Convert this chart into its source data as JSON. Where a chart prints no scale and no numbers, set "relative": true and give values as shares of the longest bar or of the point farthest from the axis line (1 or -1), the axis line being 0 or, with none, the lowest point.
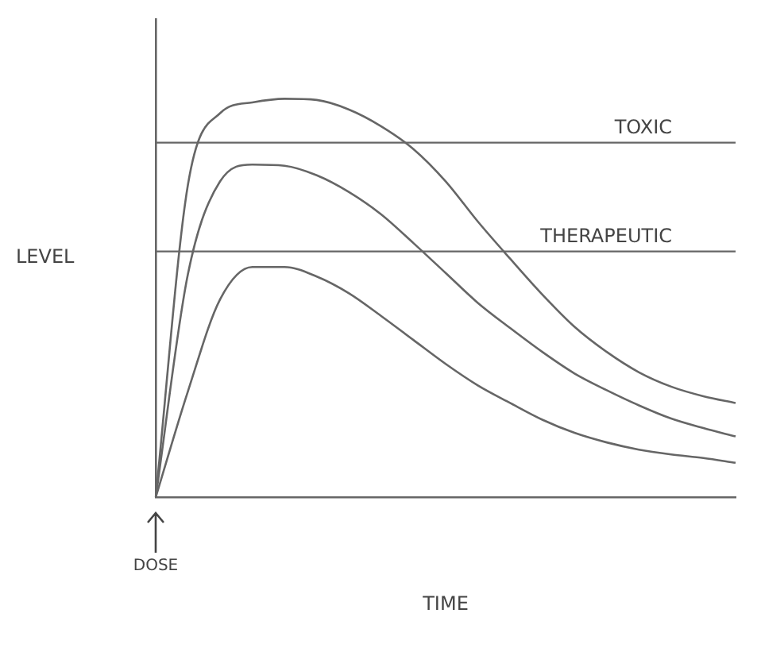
{
  "chart_data": {
    "type": "line",
    "relative": true,
    "xlabel": "TIME",
    "ylabel": "LEVEL",
    "legend": false,
    "grid": false,
    "marker": "none",
    "line_style": "solid",
    "categories": [
      null,
      null,
      null,
      null,
      null,
      null,
      null,
      null,
      null,
      null,
      null,
      null,
      null,
      null,
      null,
      null,
      null,
      null,
      null
    ],
    "series": [
      {
        "color": "#666666",
        "values": [
          0,
          0.784,
          0.964,
          0.991,
          1,
          0.997,
          0.973,
          0.931,
          0.874,
          0.793,
          0.692,
          0.599,
          0.509,
          0.428,
          0.365,
          0.314,
          0.278,
          0.254,
          0.237
        ]
      },
      {
        "color": "#666666",
        "values": [
          0,
          0.56,
          0.793,
          0.835,
          0.832,
          0.808,
          0.766,
          0.71,
          0.638,
          0.563,
          0.488,
          0.425,
          0.365,
          0.311,
          0.269,
          0.231,
          0.198,
          0.174,
          0.153
        ]
      },
      {
        "color": "#666666",
        "values": [
          0,
          0.266,
          0.497,
          0.578,
          0.578,
          0.554,
          0.512,
          0.455,
          0.395,
          0.335,
          0.281,
          0.237,
          0.195,
          0.162,
          0.138,
          0.12,
          0.108,
          0.099,
          0.087
        ]
      }
    ],
    "ref_lines": [
      {
        "axis": "y",
        "value": 0.89,
        "label": "TOXIC",
        "color": "#666666"
      },
      {
        "axis": "y",
        "value": 0.617,
        "label": "THERAPEUTIC",
        "color": "#666666"
      }
    ],
    "annotations": [
      "DOSE"
    ]
  }
}
